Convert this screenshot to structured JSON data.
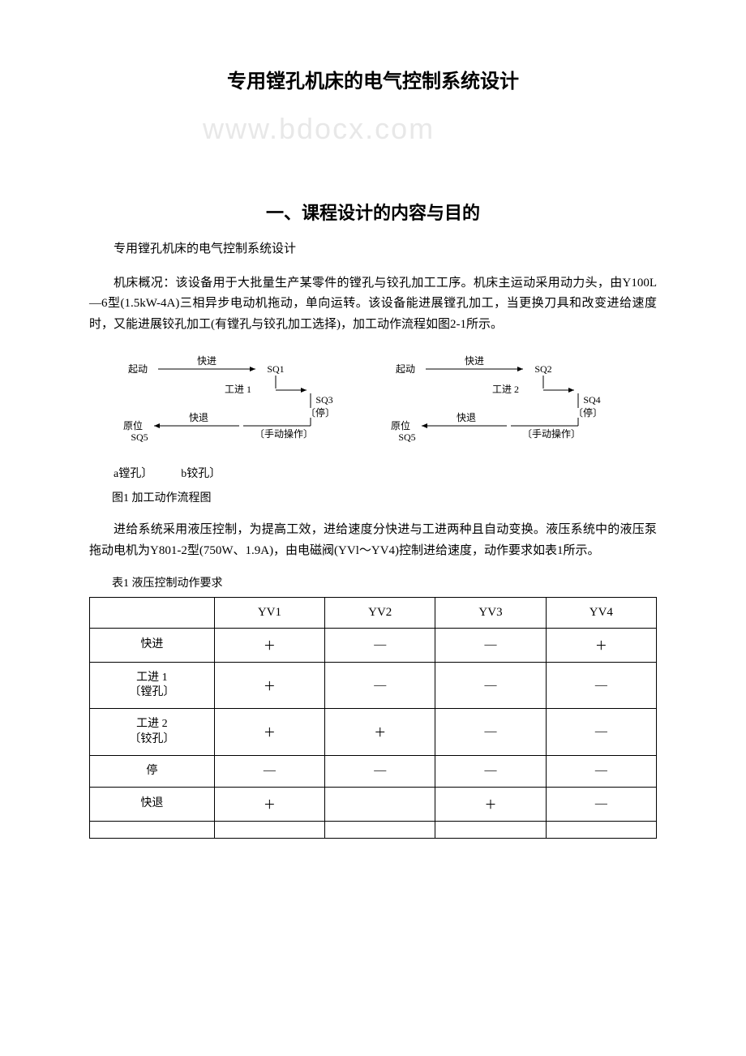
{
  "title": "专用镗孔机床的电气控制系统设计",
  "section_heading": "一、课程设计的内容与目的",
  "para1": "专用镗孔机床的电气控制系统设计",
  "para2": "机床概况：该设备用于大批量生产某零件的镗孔与铰孔加工工序。机床主运动采用动力头，由Y100L—6型(1.5kW-4A)三相异步电动机拖动，单向运转。该设备能进展镗孔加工，当更换刀具和改变进给速度时，又能进展铰孔加工(有镗孔与铰孔加工选择)，加工动作流程如图2-1所示。",
  "diagram": {
    "left": {
      "nodes": {
        "start": "起动",
        "fast": "快进",
        "sq1": "SQ1",
        "work1": "工进 1",
        "sq3": "SQ3",
        "stop": "〔停〕",
        "retreat": "快退",
        "origin": "原位",
        "sq5": "SQ5",
        "manual": "〔手动操作〕"
      }
    },
    "right": {
      "nodes": {
        "start": "起动",
        "fast": "快进",
        "sq2": "SQ2",
        "work2": "工进 2",
        "sq4": "SQ4",
        "stop": "〔停〕",
        "retreat": "快退",
        "origin": "原位",
        "sq5": "SQ5",
        "manual": "〔手动操作〕"
      }
    },
    "stroke_color": "#000000",
    "text_color": "#000000",
    "font_size": 12
  },
  "fig_label": "a镗孔〕          b铰孔〕",
  "fig_caption": "图1 加工动作流程图",
  "para3": "进给系统采用液压控制，为提高工效，进给速度分快进与工进两种且自动变换。液压系统中的液压泵拖动电机为Y801-2型(750W、1.9A)，由电磁阀(YVl～YV4)控制进给速度，动作要求如表1所示。",
  "table_caption": "表1 液压控制动作要求",
  "table": {
    "columns": [
      "",
      "YV1",
      "YV2",
      "YV3",
      "YV4"
    ],
    "rows": [
      [
        "快进",
        "＋",
        "—",
        "—",
        "＋"
      ],
      [
        "工进 1\n〔镗孔〕",
        "＋",
        "—",
        "—",
        "—"
      ],
      [
        "工进 2\n〔铰孔〕",
        "＋",
        "＋",
        "—",
        "—"
      ],
      [
        "停",
        "—",
        "—",
        "—",
        "—"
      ],
      [
        "快退",
        "＋",
        "",
        "＋",
        "—"
      ],
      [
        "",
        "",
        "",
        "",
        ""
      ]
    ],
    "col_widths": [
      "22%",
      "19.5%",
      "19.5%",
      "19.5%",
      "19.5%"
    ]
  },
  "watermark": "www.bdocx.com"
}
